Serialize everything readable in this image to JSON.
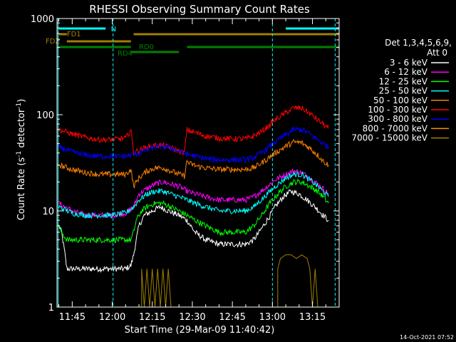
{
  "chart_data": {
    "type": "line",
    "title": "RHESSI Observing Summary Count Rates",
    "xlabel": "Start Time (29-Mar-09 11:40:42)",
    "ylabel_main": "Count Rate (s",
    "ylabel_sup1": "-1",
    "ylabel_mid": " detector",
    "ylabel_sup2": "-1",
    "ylabel_end": ")",
    "y_scale": "log",
    "ylim": [
      1,
      1000
    ],
    "xlim_minutes": [
      -5.7,
      100
    ],
    "x_ticks": [
      {
        "m": 0,
        "label": "11:45"
      },
      {
        "m": 15,
        "label": "12:00"
      },
      {
        "m": 30,
        "label": "12:15"
      },
      {
        "m": 45,
        "label": "12:30"
      },
      {
        "m": 60,
        "label": "12:45"
      },
      {
        "m": 75,
        "label": "13:00"
      },
      {
        "m": 90,
        "label": "13:15"
      }
    ],
    "y_ticks": [
      {
        "v": 1,
        "label": "1"
      },
      {
        "v": 10,
        "label": "10"
      },
      {
        "v": 100,
        "label": "100"
      },
      {
        "v": 1000,
        "label": "1000"
      }
    ],
    "legend": {
      "placement": "right",
      "header1": "Det 1,3,4,5,6,9,",
      "header2": "Att 0",
      "entries": [
        {
          "label": "3 - 6 keV",
          "color": "#ffffff"
        },
        {
          "label": "6 - 12 keV",
          "color": "#ff00ff"
        },
        {
          "label": "12 - 25 keV",
          "color": "#00ff00"
        },
        {
          "label": "25 - 50 keV",
          "color": "#00ffff"
        },
        {
          "label": "50 - 100 keV",
          "color": "#ff8000"
        },
        {
          "label": "100 - 300 keV",
          "color": "#ff0000"
        },
        {
          "label": "300 - 800 keV",
          "color": "#0000ff"
        },
        {
          "label": "800 - 7000 keV",
          "color": "#ff8c00"
        },
        {
          "label": "7000 - 15000 keV",
          "color": "#a08000"
        }
      ]
    },
    "series": [
      {
        "color": "#000000",
        "pts": [
          [
            -5,
            7
          ],
          [
            -4,
            6
          ],
          [
            -3,
            4
          ],
          [
            -2,
            2.5
          ],
          [
            0,
            2.5
          ],
          [
            5,
            2.5
          ],
          [
            10,
            2.5
          ],
          [
            15,
            2.5
          ],
          [
            20,
            2.5
          ],
          [
            22,
            2.7
          ],
          [
            23,
            3.5
          ],
          [
            24,
            5
          ],
          [
            25,
            7
          ],
          [
            27,
            9
          ],
          [
            30,
            10
          ],
          [
            33,
            11
          ],
          [
            36,
            10
          ],
          [
            40,
            9
          ],
          [
            43,
            8
          ],
          [
            46,
            6
          ],
          [
            50,
            5
          ],
          [
            55,
            4.5
          ],
          [
            60,
            4.5
          ],
          [
            65,
            4.5
          ],
          [
            68,
            5
          ],
          [
            70,
            6
          ],
          [
            73,
            8
          ],
          [
            76,
            11
          ],
          [
            79,
            14
          ],
          [
            82,
            16
          ],
          [
            85,
            15
          ],
          [
            88,
            13
          ],
          [
            91,
            11
          ],
          [
            94,
            9
          ],
          [
            96,
            8
          ]
        ]
      },
      {
        "color": "#ff00ff",
        "pts": [
          [
            -5,
            12
          ],
          [
            0,
            10
          ],
          [
            5,
            9
          ],
          [
            10,
            9
          ],
          [
            15,
            9
          ],
          [
            20,
            9.5
          ],
          [
            23,
            11
          ],
          [
            25,
            15
          ],
          [
            28,
            17
          ],
          [
            31,
            19
          ],
          [
            34,
            20
          ],
          [
            37,
            19
          ],
          [
            40,
            18
          ],
          [
            43,
            16
          ],
          [
            46,
            15
          ],
          [
            50,
            14
          ],
          [
            55,
            13
          ],
          [
            60,
            13
          ],
          [
            65,
            13
          ],
          [
            68,
            14
          ],
          [
            72,
            17
          ],
          [
            76,
            21
          ],
          [
            80,
            24
          ],
          [
            83,
            26
          ],
          [
            86,
            25
          ],
          [
            89,
            22
          ],
          [
            92,
            19
          ],
          [
            94,
            17
          ],
          [
            96,
            15
          ]
        ]
      },
      {
        "color": "#00ff00",
        "pts": [
          [
            -5,
            7
          ],
          [
            -4,
            6
          ],
          [
            -2,
            5
          ],
          [
            0,
            5
          ],
          [
            5,
            5
          ],
          [
            10,
            5
          ],
          [
            15,
            5
          ],
          [
            20,
            5
          ],
          [
            22,
            5
          ],
          [
            23,
            6
          ],
          [
            24,
            8
          ],
          [
            26,
            10
          ],
          [
            28,
            11
          ],
          [
            31,
            12
          ],
          [
            34,
            12
          ],
          [
            37,
            11
          ],
          [
            40,
            10
          ],
          [
            43,
            9
          ],
          [
            46,
            8
          ],
          [
            50,
            7
          ],
          [
            55,
            6
          ],
          [
            60,
            6
          ],
          [
            65,
            6
          ],
          [
            68,
            7
          ],
          [
            71,
            9
          ],
          [
            74,
            12
          ],
          [
            77,
            15
          ],
          [
            80,
            18
          ],
          [
            83,
            20
          ],
          [
            86,
            20
          ],
          [
            89,
            18
          ],
          [
            92,
            16
          ],
          [
            94,
            14
          ],
          [
            96,
            12
          ]
        ]
      },
      {
        "color": "#00ffff",
        "pts": [
          [
            -5,
            11
          ],
          [
            0,
            9.5
          ],
          [
            5,
            9
          ],
          [
            10,
            9
          ],
          [
            15,
            9
          ],
          [
            20,
            9.5
          ],
          [
            23,
            11
          ],
          [
            25,
            13
          ],
          [
            28,
            15
          ],
          [
            31,
            16
          ],
          [
            34,
            16
          ],
          [
            37,
            15
          ],
          [
            40,
            14
          ],
          [
            43,
            13
          ],
          [
            46,
            12
          ],
          [
            50,
            11
          ],
          [
            55,
            10
          ],
          [
            60,
            10
          ],
          [
            65,
            10
          ],
          [
            68,
            11
          ],
          [
            72,
            14
          ],
          [
            76,
            18
          ],
          [
            80,
            22
          ],
          [
            83,
            24
          ],
          [
            86,
            24
          ],
          [
            89,
            21
          ],
          [
            92,
            18
          ],
          [
            94,
            16
          ],
          [
            96,
            14
          ]
        ]
      },
      {
        "color": "#ff8000",
        "pts": [
          [
            -5,
            30
          ],
          [
            0,
            27
          ],
          [
            5,
            25
          ],
          [
            10,
            24
          ],
          [
            15,
            24
          ],
          [
            20,
            24
          ],
          [
            22,
            27
          ],
          [
            23,
            18
          ],
          [
            25,
            22
          ],
          [
            28,
            26
          ],
          [
            31,
            28
          ],
          [
            34,
            28
          ],
          [
            37,
            26
          ],
          [
            40,
            24
          ],
          [
            42,
            23
          ],
          [
            43,
            33
          ],
          [
            44,
            31
          ],
          [
            47,
            29
          ],
          [
            50,
            28
          ],
          [
            55,
            27
          ],
          [
            60,
            27
          ],
          [
            65,
            27
          ],
          [
            68,
            28
          ],
          [
            72,
            33
          ],
          [
            76,
            40
          ],
          [
            80,
            47
          ],
          [
            83,
            52
          ],
          [
            86,
            51
          ],
          [
            89,
            45
          ],
          [
            92,
            38
          ],
          [
            94,
            33
          ],
          [
            96,
            30
          ]
        ]
      },
      {
        "color": "#ff0000",
        "pts": [
          [
            -5,
            70
          ],
          [
            0,
            63
          ],
          [
            5,
            58
          ],
          [
            10,
            55
          ],
          [
            15,
            55
          ],
          [
            20,
            57
          ],
          [
            22,
            70
          ],
          [
            23,
            40
          ],
          [
            25,
            43
          ],
          [
            28,
            46
          ],
          [
            31,
            48
          ],
          [
            34,
            48
          ],
          [
            37,
            45
          ],
          [
            40,
            42
          ],
          [
            42,
            40
          ],
          [
            43,
            70
          ],
          [
            44,
            68
          ],
          [
            47,
            64
          ],
          [
            50,
            60
          ],
          [
            55,
            57
          ],
          [
            60,
            56
          ],
          [
            65,
            56
          ],
          [
            68,
            60
          ],
          [
            72,
            70
          ],
          [
            76,
            88
          ],
          [
            80,
            105
          ],
          [
            83,
            118
          ],
          [
            86,
            117
          ],
          [
            89,
            103
          ],
          [
            92,
            88
          ],
          [
            94,
            80
          ],
          [
            96,
            72
          ]
        ]
      },
      {
        "color": "#0000ff",
        "pts": [
          [
            -5,
            46
          ],
          [
            0,
            41
          ],
          [
            5,
            38
          ],
          [
            10,
            37
          ],
          [
            15,
            37
          ],
          [
            20,
            37
          ],
          [
            22,
            38
          ],
          [
            25,
            40
          ],
          [
            28,
            43
          ],
          [
            31,
            46
          ],
          [
            34,
            47
          ],
          [
            37,
            45
          ],
          [
            40,
            42
          ],
          [
            43,
            39
          ],
          [
            46,
            37
          ],
          [
            50,
            35
          ],
          [
            55,
            34
          ],
          [
            60,
            34
          ],
          [
            65,
            34
          ],
          [
            68,
            36
          ],
          [
            72,
            42
          ],
          [
            76,
            52
          ],
          [
            80,
            62
          ],
          [
            83,
            70
          ],
          [
            86,
            70
          ],
          [
            89,
            63
          ],
          [
            92,
            55
          ],
          [
            94,
            50
          ],
          [
            96,
            46
          ]
        ]
      },
      {
        "color": "#a08000",
        "pts": [
          [
            26,
            1
          ],
          [
            26,
            2.5
          ],
          [
            27,
            1
          ],
          [
            28,
            2.5
          ],
          [
            29,
            1
          ],
          [
            30,
            2.5
          ],
          [
            31,
            1
          ],
          [
            32,
            2.5
          ],
          [
            33,
            1
          ],
          [
            34,
            2.5
          ],
          [
            35,
            1
          ],
          [
            36,
            2.5
          ],
          [
            37,
            1
          ],
          [
            77,
            1
          ],
          [
            77,
            2.5
          ],
          [
            78,
            3.2
          ],
          [
            80,
            3.5
          ],
          [
            82,
            3.5
          ],
          [
            84,
            3.2
          ],
          [
            86,
            3.5
          ],
          [
            88,
            3.2
          ],
          [
            89,
            2.5
          ],
          [
            90,
            1
          ],
          [
            91,
            2.5
          ],
          [
            92,
            1
          ]
        ]
      }
    ],
    "states": [
      {
        "label": "N",
        "color": "#00ffff",
        "row": 0,
        "segments": [
          [
            -5,
            12.5
          ],
          [
            80,
            100
          ]
        ]
      },
      {
        "label": "FD1",
        "color": "#a08000",
        "row": 1,
        "segments": [
          [
            -5,
            -2
          ],
          [
            23,
            100
          ]
        ]
      },
      {
        "label": "FDZ",
        "color": "#a08000",
        "row": 2,
        "segments": [
          [
            -2,
            22
          ]
        ]
      },
      {
        "label": "RD0",
        "color": "#008000",
        "row": 3,
        "segments": [
          [
            -5,
            22
          ],
          [
            43,
            100
          ]
        ]
      },
      {
        "label": "RD4",
        "color": "#008000",
        "row": 4,
        "segments": [
          [
            22,
            40
          ]
        ]
      }
    ],
    "cyan_vlines": [
      15.3,
      75,
      98.5
    ],
    "cyan_solid_vlines": [
      -5.3
    ]
  },
  "footer": {
    "date_stamp": "14-Oct-2021 07:52"
  }
}
